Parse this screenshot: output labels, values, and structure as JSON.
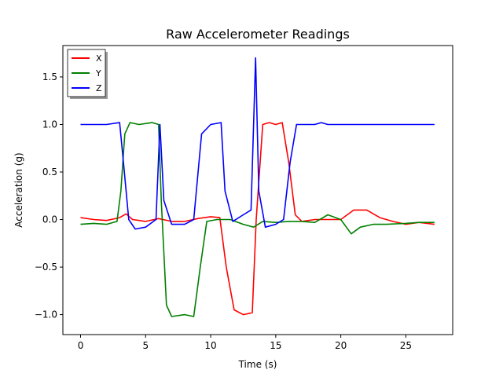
{
  "chart_data": {
    "type": "line",
    "title": "Raw Accelerometer Readings",
    "xlabel": "Time (s)",
    "ylabel": "Acceleration (g)",
    "xlim": [
      -1.36,
      28.6
    ],
    "ylim": [
      -1.21,
      1.83
    ],
    "xticks": [
      0,
      5,
      10,
      15,
      20,
      25
    ],
    "yticks": [
      -1.0,
      -0.5,
      0.0,
      0.5,
      1.0,
      1.5
    ],
    "grid": false,
    "legend_position": "top-left",
    "series": [
      {
        "name": "X",
        "color": "#ff0000",
        "x": [
          0,
          1,
          2,
          3,
          3.5,
          4,
          5,
          6,
          7,
          8,
          9,
          10,
          10.7,
          11.2,
          11.8,
          12.5,
          13.2,
          13.5,
          14,
          14.5,
          15,
          15.5,
          16,
          16.5,
          17,
          18,
          19,
          20,
          21,
          22,
          23,
          24,
          25,
          26,
          27.2
        ],
        "y": [
          0.02,
          0.0,
          -0.01,
          0.02,
          0.06,
          0.0,
          -0.02,
          0.01,
          -0.02,
          -0.02,
          0.01,
          0.03,
          0.02,
          -0.5,
          -0.95,
          -1.0,
          -0.98,
          0.0,
          1.0,
          1.02,
          1.0,
          1.02,
          0.6,
          0.05,
          -0.02,
          0.0,
          0.0,
          0.0,
          0.1,
          0.1,
          0.02,
          -0.02,
          -0.05,
          -0.03,
          -0.05
        ]
      },
      {
        "name": "Y",
        "color": "#008000",
        "x": [
          0,
          1,
          2,
          2.8,
          3.1,
          3.4,
          3.8,
          4.5,
          5.5,
          6.0,
          6.2,
          6.6,
          7,
          8,
          8.7,
          9.2,
          9.7,
          10.5,
          11.5,
          12.5,
          13.3,
          14,
          15,
          16,
          17,
          18,
          19,
          20,
          20.8,
          21.5,
          22.5,
          23.5,
          25,
          26,
          27.2
        ],
        "y": [
          -0.05,
          -0.04,
          -0.05,
          -0.02,
          0.3,
          0.9,
          1.02,
          1.0,
          1.02,
          1.0,
          0.2,
          -0.9,
          -1.02,
          -1.0,
          -1.02,
          -0.5,
          -0.02,
          0.0,
          0.0,
          -0.05,
          -0.08,
          -0.02,
          -0.03,
          -0.02,
          -0.02,
          -0.03,
          0.05,
          0.0,
          -0.15,
          -0.08,
          -0.05,
          -0.05,
          -0.04,
          -0.03,
          -0.03
        ]
      },
      {
        "name": "Z",
        "color": "#0000ff",
        "x": [
          0,
          1,
          2,
          3,
          3.3,
          3.7,
          4.2,
          5,
          5.8,
          6.1,
          6.4,
          7,
          8,
          8.7,
          9.3,
          10,
          10.8,
          11.1,
          11.7,
          12.5,
          13.1,
          13.45,
          13.7,
          14.2,
          15,
          15.6,
          16.1,
          16.6,
          17,
          18,
          18.5,
          19,
          20,
          21,
          22,
          23,
          24,
          25,
          26,
          27.2
        ],
        "y": [
          1.0,
          1.0,
          1.0,
          1.02,
          0.6,
          0.0,
          -0.1,
          -0.08,
          0.0,
          1.0,
          0.2,
          -0.05,
          -0.05,
          0.0,
          0.9,
          1.0,
          1.02,
          0.3,
          -0.02,
          0.05,
          0.1,
          1.7,
          0.3,
          -0.08,
          -0.05,
          0.0,
          0.6,
          1.0,
          1.0,
          1.0,
          1.02,
          1.0,
          1.0,
          1.0,
          1.0,
          1.0,
          1.0,
          1.0,
          1.0,
          1.0
        ]
      }
    ]
  }
}
